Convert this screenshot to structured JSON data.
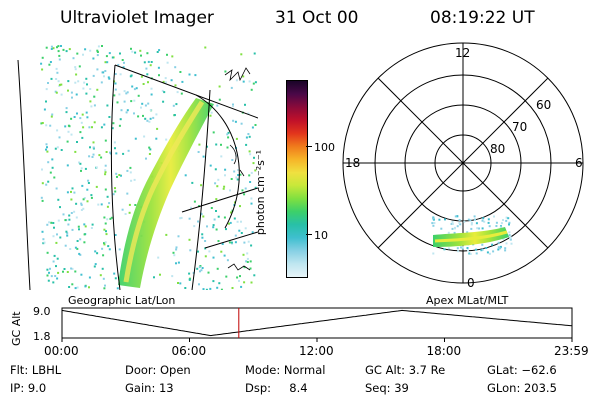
{
  "header": {
    "instrument": "Ultraviolet Imager",
    "date": "31 Oct 00",
    "time": "08:19:22 UT"
  },
  "colorbar": {
    "unit_label": "photon cm⁻²s⁻¹",
    "ticks": [
      {
        "label": "100",
        "value": 100
      },
      {
        "label": "10",
        "value": 10
      }
    ],
    "colors": [
      "#e8f4f8",
      "#bfe6f0",
      "#87d0e4",
      "#3fbfcf",
      "#28c0a8",
      "#3cd06a",
      "#80e040",
      "#c8e83a",
      "#f0e040",
      "#f6b428",
      "#f07a1c",
      "#e2351c",
      "#c0102a",
      "#8a0a3a",
      "#4a0848",
      "#1a0428"
    ]
  },
  "polar": {
    "mlt_labels": {
      "top": "12",
      "left": "18",
      "right": "6",
      "bottom": "0"
    },
    "lat_labels": [
      "60",
      "70",
      "80"
    ]
  },
  "map": {
    "left_label": "Geographic Lat/Lon",
    "right_label": "Apex MLat/MLT"
  },
  "timeline": {
    "ylabel": "GC Alt",
    "ymax_label": "9.0",
    "ymin_label": "1.8",
    "x_ticks": [
      "00:00",
      "06:00",
      "12:00",
      "18:00",
      "23:59"
    ],
    "marker_time_hours": 8.32
  },
  "footer": {
    "flt": "Flt: LBHL",
    "ip": "IP:  9.0",
    "door": "Door: Open",
    "gain": "Gain: 13",
    "mode": "Mode: Normal",
    "dsp": "Dsp:     8.4",
    "gcalt": "GC Alt: 3.7 Re",
    "seq": "Seq: 39",
    "glat": "GLat: −62.6",
    "glon": "GLon: 203.5"
  }
}
